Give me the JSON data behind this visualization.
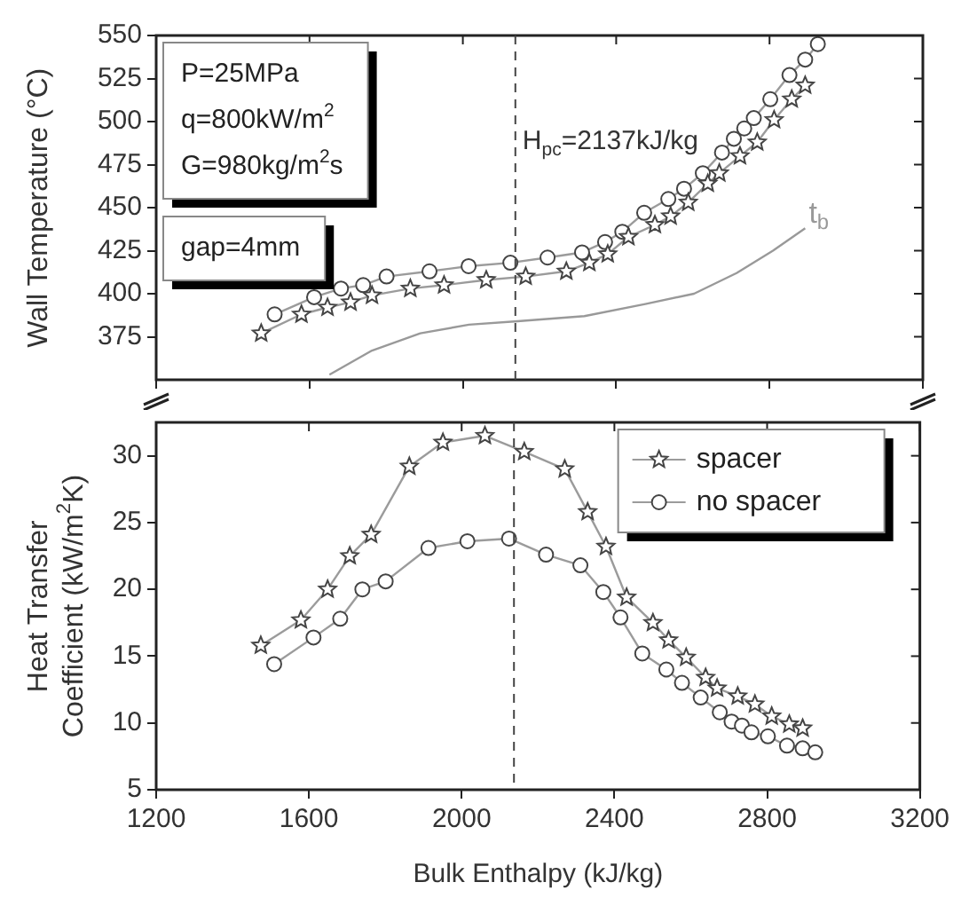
{
  "chart_data": [
    {
      "type": "line",
      "ylabel": "Wall Temperature (°C)",
      "xlim": [
        1200,
        3200
      ],
      "xticks": [
        1200,
        1600,
        2000,
        2400,
        2800,
        3200
      ],
      "ylim": [
        350,
        550
      ],
      "yticks": [
        375,
        400,
        425,
        450,
        475,
        500,
        525,
        550
      ],
      "tick_labels": "y",
      "grid": false,
      "legend": false,
      "annotations": [
        "P=25MPa",
        "q=800kW/m$^{2}$",
        "G=980kg/m$^{2}$s",
        "gap=4mm"
      ],
      "ref_lines": [
        {
          "axis": "x",
          "value": 2137,
          "label": "H$_{pc}$=2137kJ/kg",
          "line_style": "dashed",
          "color": "#444444"
        }
      ],
      "series": [
        {
          "color": "#444444",
          "marker": "star",
          "x": [
            1474,
            1579,
            1647,
            1707,
            1763,
            1863,
            1951,
            2061,
            2164,
            2270,
            2330,
            2378,
            2432,
            2501,
            2542,
            2588,
            2639,
            2669,
            2723,
            2768,
            2812,
            2858,
            2893
          ],
          "values": [
            377,
            388,
            392,
            395,
            399,
            403,
            405,
            408,
            410,
            413,
            418,
            423,
            433,
            440,
            445,
            453,
            464,
            470,
            480,
            488,
            501,
            513,
            521
          ]
        },
        {
          "color": "#444444",
          "marker": "circle",
          "x": [
            1509,
            1612,
            1682,
            1740,
            1801,
            1913,
            2015,
            2124,
            2221,
            2311,
            2371,
            2416,
            2473,
            2536,
            2577,
            2626,
            2676,
            2707,
            2734,
            2759,
            2802,
            2852,
            2893,
            2926
          ],
          "values": [
            388,
            398,
            403,
            405,
            410,
            413,
            416,
            418,
            421,
            424,
            430,
            436,
            447,
            455,
            461,
            470,
            482,
            490,
            496,
            502,
            513,
            527,
            536,
            545
          ]
        },
        {
          "name": "t$_{b}$",
          "color": "#999999",
          "marker": "none",
          "x": [
            1652,
            1763,
            1889,
            2016,
            2143,
            2317,
            2476,
            2603,
            2714,
            2809,
            2893
          ],
          "values": [
            353,
            367,
            377,
            382,
            384,
            387,
            394,
            400,
            412,
            425,
            438
          ]
        }
      ]
    },
    {
      "type": "line",
      "ylabel": "Heat Transfer\nCoefficient (kW/m$^{2}$K)",
      "xlabel": "Bulk Enthalpy (kJ/kg)",
      "xlim": [
        1200,
        3200
      ],
      "xticks": [
        1200,
        1600,
        2000,
        2400,
        2800,
        3200
      ],
      "ylim": [
        5,
        32.5
      ],
      "yticks": [
        5,
        10,
        15,
        20,
        25,
        30
      ],
      "grid": false,
      "legend": "top right",
      "ref_lines": [
        {
          "axis": "x",
          "value": 2137,
          "line_style": "dashed",
          "color": "#444444"
        }
      ],
      "series": [
        {
          "name": "spacer",
          "color": "#444444",
          "marker": "star",
          "x": [
            1474,
            1579,
            1649,
            1707,
            1763,
            1863,
            1951,
            2061,
            2164,
            2270,
            2330,
            2378,
            2432,
            2501,
            2542,
            2588,
            2639,
            2669,
            2723,
            2768,
            2812,
            2858,
            2893
          ],
          "values": [
            15.8,
            17.7,
            20.0,
            22.5,
            24.1,
            29.2,
            31.0,
            31.5,
            30.3,
            29.0,
            25.8,
            23.2,
            19.4,
            17.5,
            16.2,
            14.9,
            13.4,
            12.6,
            12.0,
            11.4,
            10.5,
            9.9,
            9.6
          ]
        },
        {
          "name": "no spacer",
          "color": "#444444",
          "marker": "circle",
          "x": [
            1509,
            1612,
            1682,
            1740,
            1801,
            1913,
            2015,
            2124,
            2221,
            2311,
            2371,
            2416,
            2473,
            2536,
            2577,
            2626,
            2676,
            2707,
            2734,
            2759,
            2802,
            2852,
            2893,
            2926
          ],
          "values": [
            14.4,
            16.4,
            17.8,
            20.0,
            20.6,
            23.1,
            23.6,
            23.8,
            22.6,
            21.8,
            19.8,
            17.9,
            15.2,
            14.0,
            13.0,
            11.9,
            10.8,
            10.1,
            9.8,
            9.3,
            9.0,
            8.3,
            8.1,
            7.8
          ]
        }
      ]
    }
  ]
}
